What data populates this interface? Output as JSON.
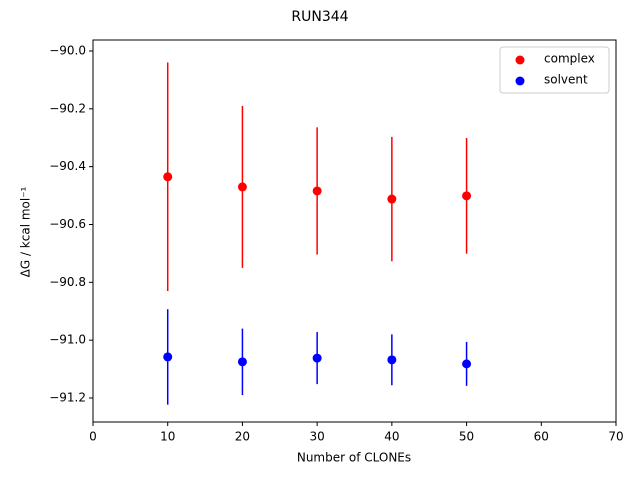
{
  "chart_data": {
    "type": "errorbar-scatter",
    "title": "RUN344",
    "x_label": "Number of CLONEs",
    "y_label": "ΔG / kcal mol⁻¹",
    "x": [
      10,
      20,
      30,
      40,
      50
    ],
    "series": [
      {
        "name": "complex",
        "color": "#ff0000",
        "values": [
          -90.435,
          -90.47,
          -90.484,
          -90.512,
          -90.501
        ],
        "errors": [
          0.395,
          0.28,
          0.22,
          0.215,
          0.2
        ]
      },
      {
        "name": "solvent",
        "color": "#0000ff",
        "values": [
          -91.058,
          -91.075,
          -91.062,
          -91.068,
          -91.082
        ],
        "errors": [
          0.165,
          0.115,
          0.09,
          0.088,
          0.076
        ]
      }
    ],
    "xlim": [
      0,
      70
    ],
    "xticks": [
      0,
      10,
      20,
      30,
      40,
      50,
      60,
      70
    ],
    "ylim": [
      -91.283,
      -89.962
    ],
    "yticks": [
      {
        "value": -91.2,
        "label": "−91.2"
      },
      {
        "value": -91.0,
        "label": "−91.0"
      },
      {
        "value": -90.8,
        "label": "−90.8"
      },
      {
        "value": -90.6,
        "label": "−90.6"
      },
      {
        "value": -90.4,
        "label": "−90.4"
      },
      {
        "value": -90.2,
        "label": "−90.2"
      },
      {
        "value": -90.0,
        "label": "−90.0"
      }
    ],
    "legend": "upper right",
    "grid": false
  }
}
